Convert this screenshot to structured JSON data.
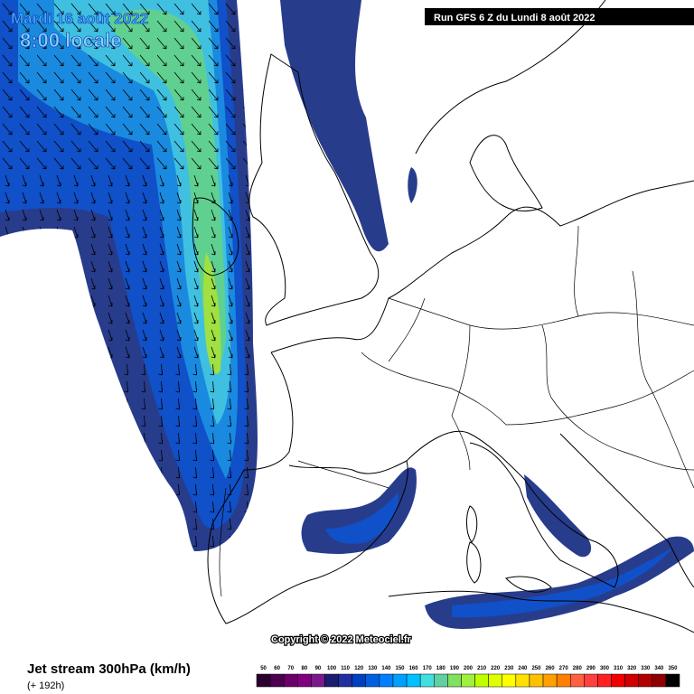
{
  "header": {
    "date": "Mardi 16 août 2022",
    "time": "8:00 locale",
    "run": "Run GFS 6 Z du Lundi 8 août 2022"
  },
  "copyright": "Copyright © 2022 Meteociel.fr",
  "footer": {
    "title": "Jet stream 300hPa (km/h)",
    "lead": "(+ 192h)"
  },
  "legend": {
    "labels": [
      50,
      60,
      70,
      80,
      90,
      100,
      110,
      120,
      130,
      140,
      150,
      160,
      170,
      180,
      190,
      200,
      210,
      220,
      230,
      240,
      250,
      260,
      270,
      280,
      290,
      300,
      310,
      320,
      330,
      340,
      350
    ],
    "colors": [
      "#2b0030",
      "#4b0050",
      "#6a0068",
      "#800080",
      "#7a1a8a",
      "#1c1c70",
      "#2030a0",
      "#0040c0",
      "#0060e0",
      "#0080ff",
      "#00a0ff",
      "#00c0ff",
      "#40e0e0",
      "#60d0a0",
      "#80e060",
      "#a0f040",
      "#c0ff00",
      "#e0ff00",
      "#ffff00",
      "#ffe000",
      "#ffc000",
      "#ffa000",
      "#ff8000",
      "#ff6040",
      "#ff4040",
      "#ff2020",
      "#f00000",
      "#d00000",
      "#b00000",
      "#900000",
      "#000000"
    ]
  }
}
